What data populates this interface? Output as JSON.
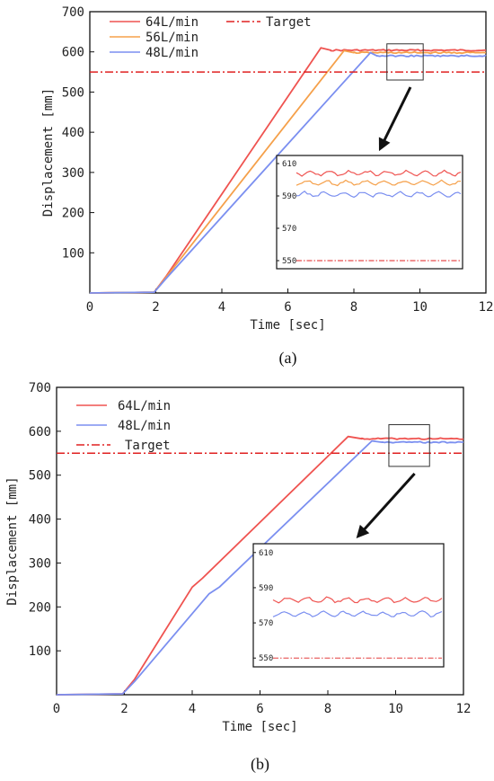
{
  "chart_data": [
    {
      "type": "line",
      "caption": "(a)",
      "xlabel": "Time [sec]",
      "ylabel": "Displacement [mm]",
      "xlim": [
        0,
        12
      ],
      "ylim": [
        0,
        700
      ],
      "xticks": [
        0,
        2,
        4,
        6,
        8,
        10,
        12
      ],
      "yticks": [
        100,
        200,
        300,
        400,
        500,
        600,
        700
      ],
      "legend_position": "top-left",
      "series": [
        {
          "name": "64L/min",
          "color": "#ef5350",
          "x": [
            0,
            1.95,
            2.3,
            7.0,
            7.3,
            12
          ],
          "y": [
            0,
            2,
            40,
            610,
            604,
            604
          ]
        },
        {
          "name": "56L/min",
          "color": "#f5a04a",
          "x": [
            0,
            1.95,
            2.3,
            7.7,
            8.0,
            12
          ],
          "y": [
            0,
            2,
            38,
            603,
            598,
            598
          ]
        },
        {
          "name": "48L/min",
          "color": "#7b8ff0",
          "x": [
            0,
            1.95,
            2.3,
            8.5,
            8.7,
            12
          ],
          "y": [
            0,
            2,
            35,
            598,
            590,
            590
          ]
        },
        {
          "name": "Target",
          "color": "#e02020",
          "style": "dash-dot",
          "x": [
            0,
            12
          ],
          "y": [
            550,
            550
          ]
        }
      ],
      "inset": {
        "source_x": [
          9.0,
          10.1
        ],
        "source_y": [
          530,
          620
        ],
        "yticks": [
          550,
          570,
          590,
          610
        ],
        "ylim": [
          545,
          615
        ],
        "levels": {
          "64L/min": 604,
          "56L/min": 598,
          "48L/min": 591,
          "Target": 550
        }
      }
    },
    {
      "type": "line",
      "caption": "(b)",
      "xlabel": "Time [sec]",
      "ylabel": "Displacement [mm]",
      "xlim": [
        0,
        12
      ],
      "ylim": [
        0,
        700
      ],
      "xticks": [
        0,
        2,
        4,
        6,
        8,
        10,
        12
      ],
      "yticks": [
        100,
        200,
        300,
        400,
        500,
        600,
        700
      ],
      "legend_position": "top-left",
      "series": [
        {
          "name": "64L/min",
          "color": "#ef5350",
          "x": [
            0,
            1.95,
            2.3,
            4.0,
            4.3,
            8.6,
            9.0,
            12
          ],
          "y": [
            0,
            2,
            35,
            245,
            265,
            588,
            583,
            583
          ]
        },
        {
          "name": "48L/min",
          "color": "#7b8ff0",
          "x": [
            0,
            1.95,
            2.3,
            4.5,
            4.8,
            9.3,
            9.6,
            12
          ],
          "y": [
            0,
            2,
            30,
            230,
            245,
            578,
            575,
            575
          ]
        },
        {
          "name": "Target",
          "color": "#e02020",
          "style": "dash-dot",
          "x": [
            0,
            12
          ],
          "y": [
            550,
            550
          ]
        }
      ],
      "inset": {
        "source_x": [
          9.8,
          11.0
        ],
        "source_y": [
          520,
          615
        ],
        "yticks": [
          550,
          570,
          590,
          610
        ],
        "ylim": [
          545,
          615
        ],
        "levels": {
          "64L/min": 583,
          "48L/min": 575,
          "Target": 550
        }
      }
    }
  ]
}
